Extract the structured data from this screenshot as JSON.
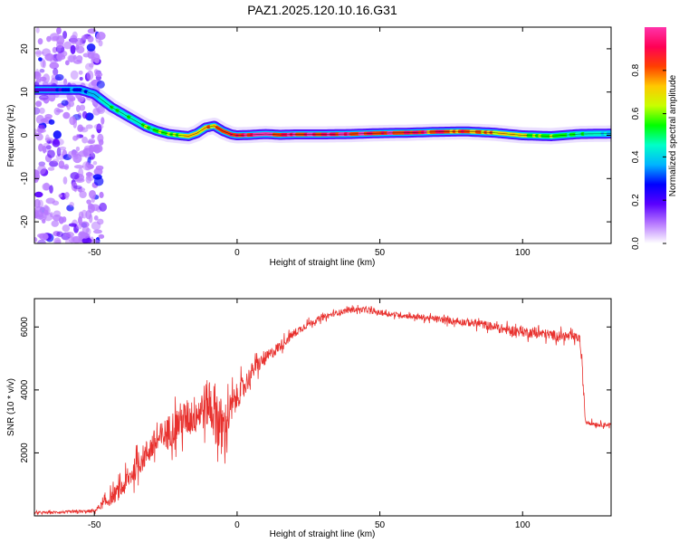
{
  "figure_title": "PAZ1.2025.120.10.16.G31",
  "chart_data": [
    {
      "type": "heatmap",
      "xlabel": "Height of straight line (km)",
      "ylabel": "Frequency (Hz)",
      "xlim": [
        -71,
        131
      ],
      "ylim": [
        -25,
        25
      ],
      "xticks": [
        -50,
        0,
        50,
        100
      ],
      "yticks": [
        -20,
        -10,
        0,
        10,
        20
      ],
      "colorbar": {
        "label": "Normalized spectral amplitude",
        "range": [
          0,
          1
        ],
        "ticks": [
          "0.0",
          "0.2",
          "0.4",
          "0.6",
          "0.8"
        ],
        "colormap": [
          "#ffffff",
          "#b87aff",
          "#5a00ff",
          "#0000ff",
          "#00b4ff",
          "#00ffc8",
          "#00ff00",
          "#c8ff00",
          "#ffc800",
          "#ff4000",
          "#ff0055",
          "#ff33aa"
        ]
      },
      "noise_region_x": [
        -71,
        -47
      ],
      "ridge": {
        "x": [
          -71,
          -65,
          -60,
          -55,
          -50,
          -47,
          -44,
          -40,
          -36,
          -32,
          -28,
          -24,
          -20,
          -17,
          -14,
          -11,
          -8,
          -5,
          -2,
          0,
          5,
          10,
          15,
          20,
          30,
          40,
          50,
          60,
          70,
          80,
          90,
          100,
          110,
          120,
          131
        ],
        "frequency_hz": [
          10.5,
          10.5,
          10.5,
          10.5,
          9.5,
          8.0,
          6.5,
          5.0,
          3.5,
          2.0,
          1.0,
          0.3,
          0.0,
          -0.2,
          0.5,
          1.8,
          2.2,
          1.0,
          0.2,
          0.0,
          0.1,
          0.3,
          0.1,
          0.2,
          0.2,
          0.3,
          0.5,
          0.6,
          0.8,
          0.9,
          0.6,
          0.0,
          -0.2,
          0.3,
          0.4
        ],
        "amplitude": [
          0.2,
          0.2,
          0.3,
          0.3,
          0.35,
          0.45,
          0.5,
          0.5,
          0.5,
          0.55,
          0.6,
          0.6,
          0.65,
          0.7,
          0.7,
          0.75,
          0.75,
          0.8,
          0.85,
          0.9,
          0.95,
          0.95,
          0.95,
          0.95,
          0.95,
          0.95,
          0.9,
          0.9,
          0.85,
          0.8,
          0.75,
          0.65,
          0.55,
          0.5,
          0.45
        ]
      }
    },
    {
      "type": "line",
      "xlabel": "Height of straight line (km)",
      "ylabel": "SNR (10 * v/v)",
      "xlim": [
        -71,
        131
      ],
      "ylim": [
        0,
        6900
      ],
      "xticks": [
        -50,
        0,
        50,
        100
      ],
      "yticks": [
        2000,
        4000,
        6000
      ],
      "series": [
        {
          "color": "#e8302d",
          "x": [
            -71,
            -60,
            -50,
            -48,
            -45,
            -40,
            -35,
            -30,
            -25,
            -20,
            -15,
            -10,
            -7,
            -5,
            -2,
            0,
            3,
            6,
            10,
            15,
            20,
            25,
            30,
            35,
            40,
            45,
            50,
            55,
            60,
            65,
            70,
            75,
            80,
            85,
            90,
            95,
            100,
            105,
            110,
            115,
            120,
            121,
            122,
            126,
            131
          ],
          "y": [
            100,
            120,
            150,
            300,
            500,
            900,
            1600,
            2200,
            2600,
            3000,
            3200,
            3600,
            3200,
            2700,
            3400,
            3800,
            4200,
            4700,
            5000,
            5400,
            5800,
            6100,
            6300,
            6450,
            6550,
            6550,
            6450,
            6400,
            6350,
            6300,
            6250,
            6200,
            6150,
            6100,
            6000,
            5900,
            5850,
            5800,
            5750,
            5700,
            5650,
            4500,
            3000,
            2900,
            2900
          ],
          "noise": [
            40,
            60,
            80,
            150,
            300,
            450,
            550,
            650,
            750,
            850,
            900,
            1100,
            1500,
            1200,
            800,
            600,
            500,
            400,
            300,
            250,
            200,
            150,
            130,
            120,
            120,
            120,
            120,
            120,
            120,
            130,
            140,
            150,
            170,
            190,
            200,
            220,
            230,
            240,
            230,
            220,
            200,
            300,
            120,
            100,
            100
          ]
        }
      ]
    }
  ]
}
